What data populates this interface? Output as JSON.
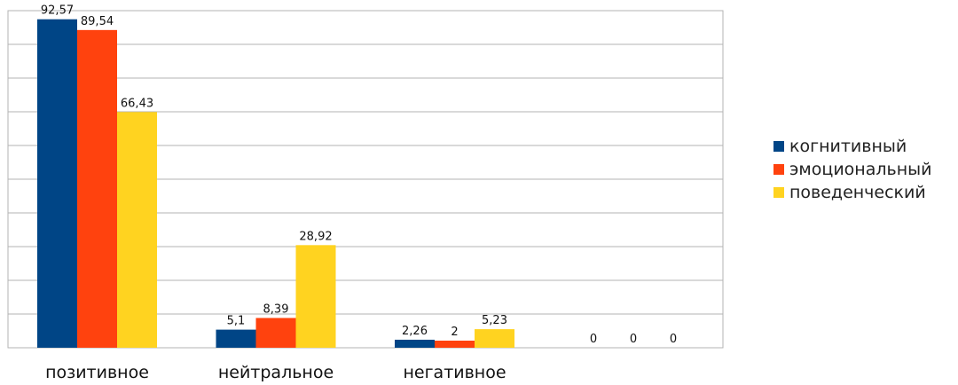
{
  "chart_data": {
    "type": "bar",
    "categories": [
      "позитивное",
      "нейтральное",
      "негативное",
      ""
    ],
    "series": [
      {
        "name": "когнитивный",
        "values": [
          92.57,
          5.1,
          2.26,
          0
        ],
        "labels": [
          "92,57",
          "5,1",
          "2,26",
          "0"
        ],
        "color": "#004586"
      },
      {
        "name": "эмоциональный",
        "values": [
          89.54,
          8.39,
          2,
          0
        ],
        "labels": [
          "89,54",
          "8,39",
          "2",
          "0"
        ],
        "color": "#ff420e"
      },
      {
        "name": "поведенческий",
        "values": [
          66.43,
          28.92,
          5.23,
          0
        ],
        "labels": [
          "66,43",
          "28,92",
          "5,23",
          "0"
        ],
        "color": "#ffd320"
      }
    ],
    "ylim": [
      0,
      95
    ],
    "grid": true,
    "legend_position": "right"
  }
}
